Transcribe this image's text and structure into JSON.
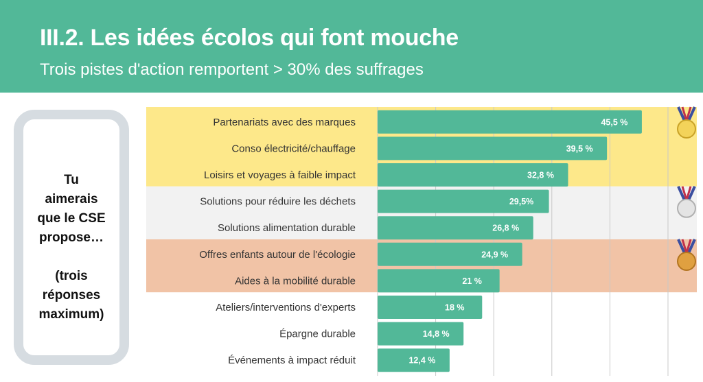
{
  "header": {
    "title": "III.2. Les idées écolos qui font mouche",
    "subtitle": "Trois pistes d'action remportent > 30% des suffrages"
  },
  "question": {
    "line1": "Tu",
    "line2": "aimerais",
    "line3": "que le CSE",
    "line4": "propose…",
    "line5": "(trois",
    "line6": "réponses",
    "line7": "maximum)"
  },
  "colors": {
    "bar": "#52b898",
    "gold_band": "#fde88a",
    "silver_band": "#f2f2f2",
    "bronze_band": "#f1c3a6"
  },
  "chart_data": {
    "type": "bar",
    "orientation": "horizontal",
    "categories": [
      "Partenariats avec des marques",
      "Conso électricité/chauffage",
      "Loisirs et voyages à faible impact",
      "Solutions pour réduire les déchets",
      "Solutions alimentation durable",
      "Offres enfants autour de l'écologie",
      "Aides à la mobilité durable",
      "Ateliers/interventions d'experts",
      "Épargne durable",
      "Événements à impact réduit"
    ],
    "values": [
      45.5,
      39.5,
      32.8,
      29.5,
      26.8,
      24.9,
      21,
      18,
      14.8,
      12.4
    ],
    "value_labels": [
      "45,5 %",
      "39,5 %",
      "32,8 %",
      "29,5%",
      "26,8 %",
      "24,9 %",
      "21 %",
      "18 %",
      "14,8 %",
      "12,4 %"
    ],
    "xlim": [
      0,
      50
    ],
    "grid": true,
    "bands": [
      {
        "name": "gold",
        "rows": [
          0,
          2
        ]
      },
      {
        "name": "silver",
        "rows": [
          3,
          4
        ]
      },
      {
        "name": "bronze",
        "rows": [
          5,
          6
        ]
      }
    ]
  }
}
